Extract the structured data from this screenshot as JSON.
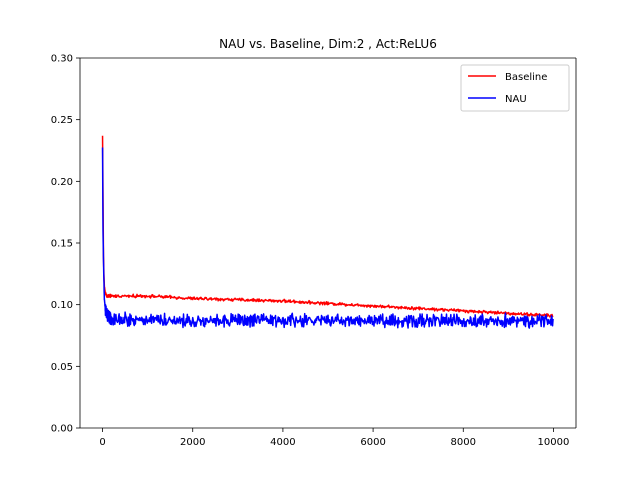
{
  "chart_data": {
    "type": "line",
    "title": "NAU vs. Baseline, Dim:2 , Act:ReLU6",
    "xlabel": "",
    "ylabel": "",
    "xlim": [
      -500,
      10500
    ],
    "ylim": [
      0,
      0.3
    ],
    "x_ticks": [
      0,
      2000,
      4000,
      6000,
      8000,
      10000
    ],
    "x_tick_labels": [
      "0",
      "2000",
      "4000",
      "6000",
      "8000",
      "10000"
    ],
    "y_ticks": [
      0,
      0.05,
      0.1,
      0.15,
      0.2,
      0.25,
      0.3
    ],
    "y_tick_labels": [
      "0.00",
      "0.05",
      "0.10",
      "0.15",
      "0.20",
      "0.25",
      "0.30"
    ],
    "grid": false,
    "legend_position": "top-right",
    "series": [
      {
        "name": "Baseline",
        "color": "#ff0000",
        "x": [
          0,
          10,
          20,
          30,
          40,
          60,
          80,
          100,
          150,
          200,
          500,
          1000,
          1500,
          2000,
          3000,
          4000,
          5000,
          6000,
          7000,
          8000,
          9000,
          10000
        ],
        "y": [
          0.237,
          0.19,
          0.14,
          0.125,
          0.115,
          0.11,
          0.108,
          0.107,
          0.107,
          0.107,
          0.107,
          0.107,
          0.106,
          0.105,
          0.104,
          0.103,
          0.101,
          0.099,
          0.097,
          0.095,
          0.093,
          0.091
        ],
        "noise_amplitude": 0.0015
      },
      {
        "name": "NAU",
        "color": "#0000ff",
        "x": [
          0,
          10,
          20,
          30,
          40,
          60,
          80,
          100,
          150,
          200,
          500,
          1000,
          2000,
          3000,
          4000,
          5000,
          6000,
          7000,
          8000,
          9000,
          10000
        ],
        "y": [
          0.228,
          0.16,
          0.138,
          0.12,
          0.105,
          0.097,
          0.093,
          0.091,
          0.09,
          0.089,
          0.088,
          0.088,
          0.087,
          0.087,
          0.087,
          0.087,
          0.087,
          0.087,
          0.087,
          0.087,
          0.087
        ],
        "noise_amplitude": 0.0065
      }
    ]
  }
}
